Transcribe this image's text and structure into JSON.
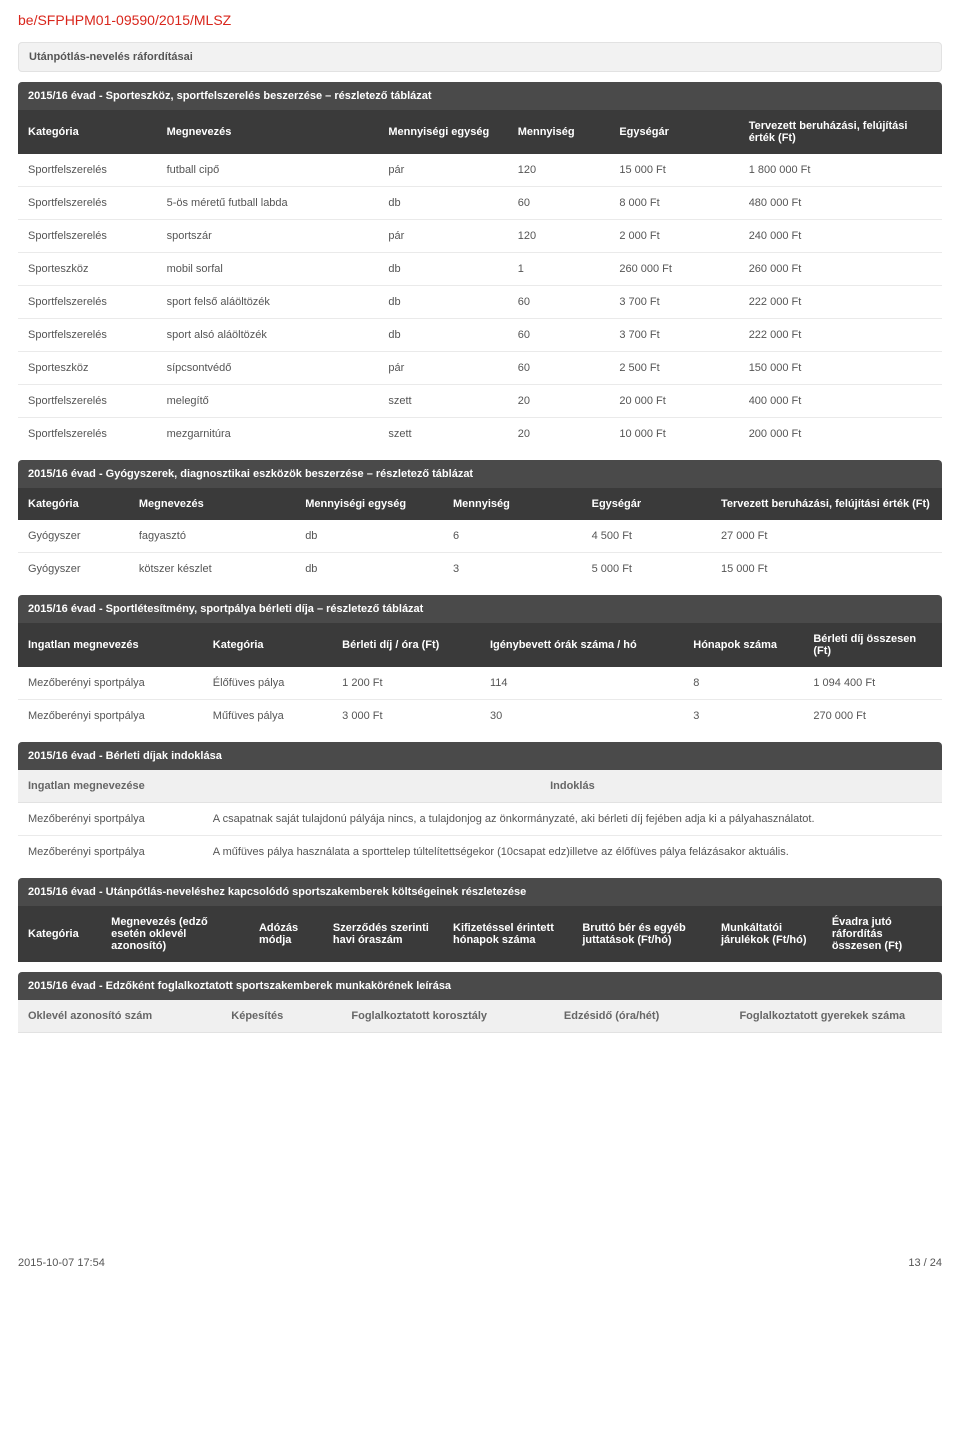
{
  "doc_id": "be/SFPHPM01-09590/2015/MLSZ",
  "section1": {
    "title": "Utánpótlás-nevelés ráfordításai",
    "bar": "2015/16 évad - Sporteszköz, sportfelszerelés beszerzése – részletező táblázat",
    "cols": [
      "Kategória",
      "Megnevezés",
      "Mennyiségi egység",
      "Mennyiség",
      "Egységár",
      "Tervezett beruházási, felújítási érték (Ft)"
    ],
    "rows": [
      [
        "Sportfelszerelés",
        "futball cipő",
        "pár",
        "120",
        "15 000 Ft",
        "1 800 000 Ft"
      ],
      [
        "Sportfelszerelés",
        "5-ös méretű futball labda",
        "db",
        "60",
        "8 000 Ft",
        "480 000 Ft"
      ],
      [
        "Sportfelszerelés",
        "sportszár",
        "pár",
        "120",
        "2 000 Ft",
        "240 000 Ft"
      ],
      [
        "Sporteszköz",
        "mobil sorfal",
        "db",
        "1",
        "260 000 Ft",
        "260 000 Ft"
      ],
      [
        "Sportfelszerelés",
        "sport felső aláöltözék",
        "db",
        "60",
        "3 700 Ft",
        "222 000 Ft"
      ],
      [
        "Sportfelszerelés",
        "sport alsó aláöltözék",
        "db",
        "60",
        "3 700 Ft",
        "222 000 Ft"
      ],
      [
        "Sporteszköz",
        "sípcsontvédő",
        "pár",
        "60",
        "2 500 Ft",
        "150 000 Ft"
      ],
      [
        "Sportfelszerelés",
        "melegítő",
        "szett",
        "20",
        "20 000 Ft",
        "400 000 Ft"
      ],
      [
        "Sportfelszerelés",
        "mezgarnitúra",
        "szett",
        "20",
        "10 000 Ft",
        "200 000 Ft"
      ]
    ]
  },
  "section2": {
    "bar": "2015/16 évad - Gyógyszerek, diagnosztikai eszközök beszerzése – részletező táblázat",
    "cols": [
      "Kategória",
      "Megnevezés",
      "Mennyiségi egység",
      "Mennyiség",
      "Egységár",
      "Tervezett beruházási, felújítási érték (Ft)"
    ],
    "rows": [
      [
        "Gyógyszer",
        "fagyasztó",
        "db",
        "6",
        "4 500 Ft",
        "27 000 Ft"
      ],
      [
        "Gyógyszer",
        "kötszer készlet",
        "db",
        "3",
        "5 000 Ft",
        "15 000 Ft"
      ]
    ]
  },
  "section3": {
    "bar": "2015/16 évad - Sportlétesítmény, sportpálya bérleti díja – részletező táblázat",
    "cols": [
      "Ingatlan megnevezés",
      "Kategória",
      "Bérleti díj / óra (Ft)",
      "Igénybevett órák száma / hó",
      "Hónapok száma",
      "Bérleti díj összesen (Ft)"
    ],
    "rows": [
      [
        "Mezőberényi sportpálya",
        "Élőfüves pálya",
        "1 200 Ft",
        "114",
        "8",
        "1 094 400 Ft"
      ],
      [
        "Mezőberényi sportpálya",
        "Műfüves pálya",
        "3 000 Ft",
        "30",
        "3",
        "270 000 Ft"
      ]
    ]
  },
  "section4": {
    "bar": "2015/16 évad - Bérleti díjak indoklása",
    "cols": [
      "Ingatlan megnevezése",
      "Indoklás"
    ],
    "rows": [
      [
        "Mezőberényi sportpálya",
        "A csapatnak saját tulajdonú pályája nincs, a tulajdonjog az önkormányzaté, aki bérleti díj fejében adja ki a pályahasználatot."
      ],
      [
        "Mezőberényi sportpálya",
        "A műfüves pálya használata a sporttelep túltelítettségekor (10csapat edz)illetve az élőfüves pálya felázásakor aktuális."
      ]
    ]
  },
  "section5": {
    "bar": "2015/16 évad - Utánpótlás-neveléshez kapcsolódó sportszakemberek költségeinek részletezése",
    "cols": [
      "Kategória",
      "Megnevezés (edző esetén oklevél azonosító)",
      "Adózás módja",
      "Szerződés szerinti havi óraszám",
      "Kifizetéssel érintett hónapok száma",
      "Bruttó bér és egyéb juttatások (Ft/hó)",
      "Munkáltatói járulékok (Ft/hó)",
      "Évadra jutó ráfordítás összesen (Ft)"
    ]
  },
  "section6": {
    "bar": "2015/16 évad - Edzőként foglalkoztatott sportszakemberek munkakörének leírása",
    "cols": [
      "Oklevél azonosító szám",
      "Képesítés",
      "Foglalkoztatott korosztály",
      "Edzésidő (óra/hét)",
      "Foglalkoztatott gyerekek száma"
    ]
  },
  "footer": {
    "left": "2015-10-07 17:54",
    "right": "13 / 24"
  },
  "widths": {
    "t1": [
      "15%",
      "24%",
      "14%",
      "11%",
      "14%",
      "22%"
    ],
    "t2": [
      "12%",
      "18%",
      "16%",
      "15%",
      "14%",
      "25%"
    ],
    "t3": [
      "20%",
      "14%",
      "16%",
      "22%",
      "13%",
      "15%"
    ],
    "t4": [
      "20%",
      "80%"
    ],
    "t5": [
      "9%",
      "16%",
      "8%",
      "13%",
      "14%",
      "15%",
      "12%",
      "13%"
    ],
    "t6": [
      "22%",
      "13%",
      "23%",
      "19%",
      "23%"
    ]
  }
}
